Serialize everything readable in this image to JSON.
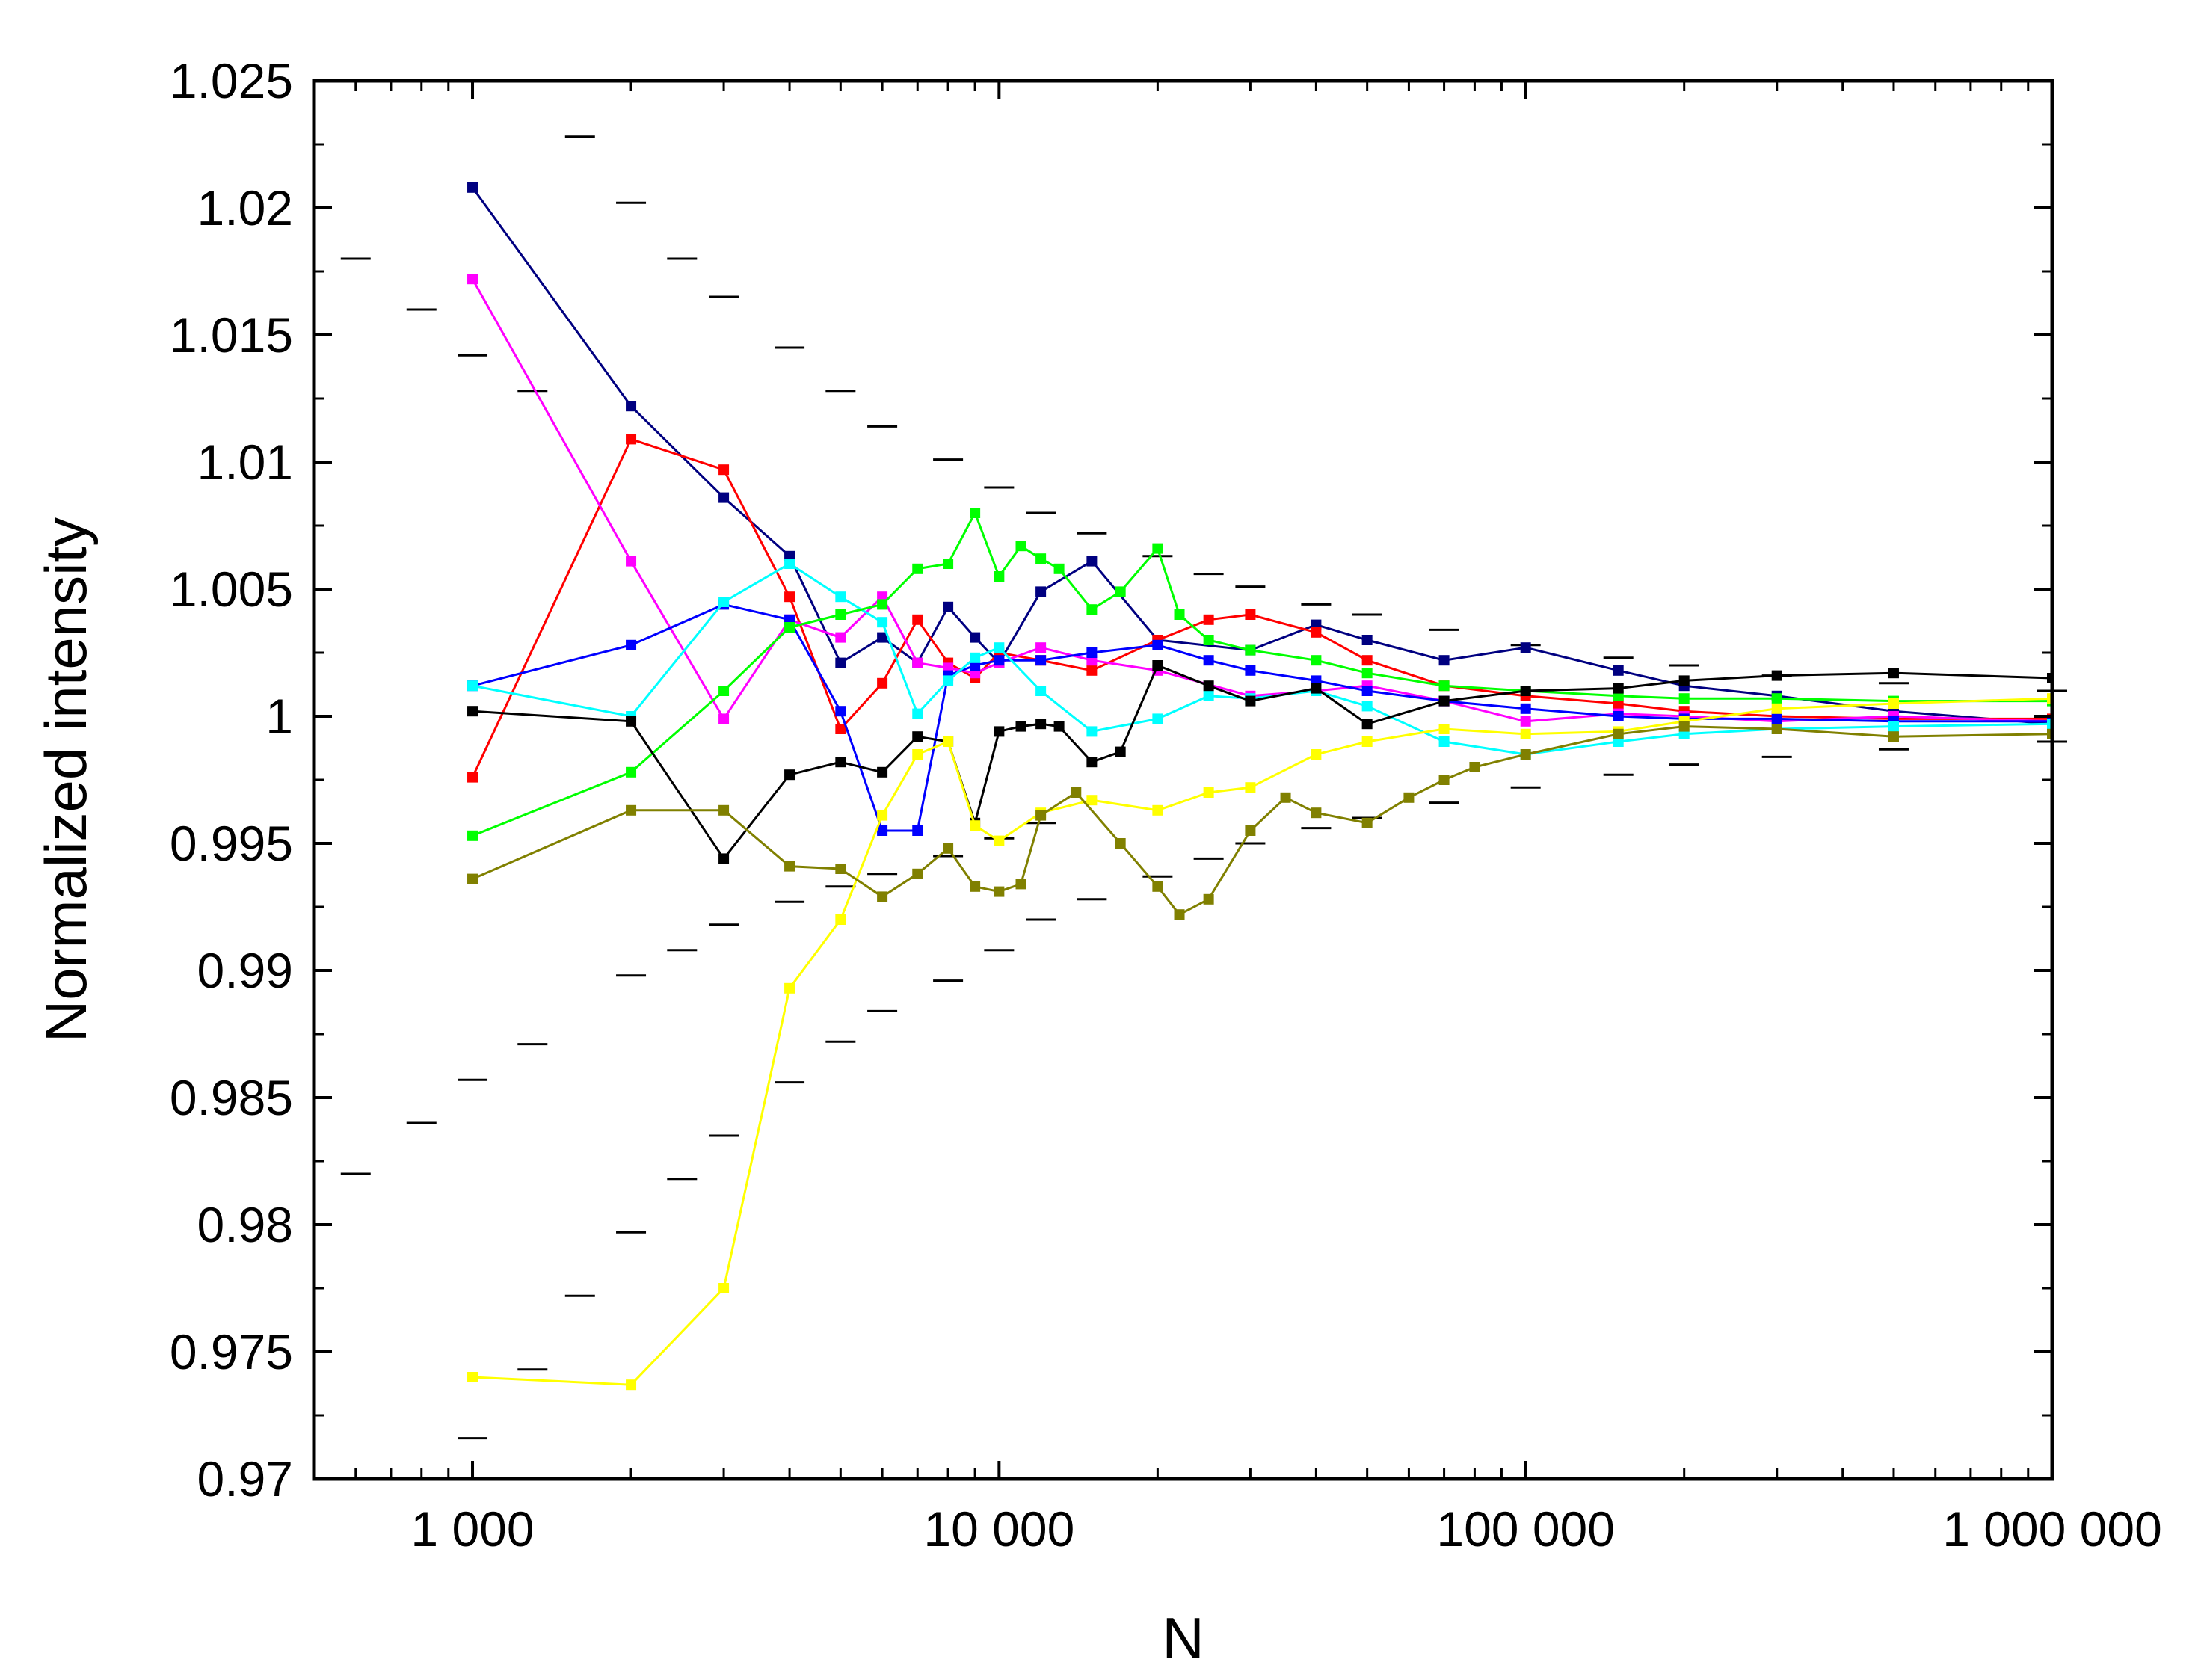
{
  "chart_data": {
    "type": "line",
    "title": "",
    "xlabel": "N",
    "ylabel": "Normalized intensity",
    "xscale": "log",
    "xlim": [
      500,
      1000000
    ],
    "ylim": [
      0.97,
      1.025
    ],
    "grid": false,
    "legend": "none",
    "x_ticks": [
      {
        "value": 1000,
        "label": "1 000"
      },
      {
        "value": 10000,
        "label": "10 000"
      },
      {
        "value": 100000,
        "label": "100 000"
      },
      {
        "value": 1000000,
        "label": "1 000 000"
      }
    ],
    "y_ticks": [
      {
        "value": 0.97,
        "label": "0.97"
      },
      {
        "value": 0.975,
        "label": "0.975"
      },
      {
        "value": 0.98,
        "label": "0.98"
      },
      {
        "value": 0.985,
        "label": "0.985"
      },
      {
        "value": 0.99,
        "label": "0.99"
      },
      {
        "value": 0.995,
        "label": "0.995"
      },
      {
        "value": 1.0,
        "label": "1"
      },
      {
        "value": 1.005,
        "label": "1.005"
      },
      {
        "value": 1.01,
        "label": "1.01"
      },
      {
        "value": 1.015,
        "label": "1.015"
      },
      {
        "value": 1.02,
        "label": "1.02"
      },
      {
        "value": 1.025,
        "label": "1.025"
      }
    ],
    "series": [
      {
        "name": "navy",
        "color": "#000080",
        "x": [
          1000,
          2000,
          3000,
          4000,
          5000,
          6000,
          7000,
          8000,
          9000,
          10000,
          12000,
          15000,
          20000,
          30000,
          40000,
          50000,
          70000,
          100000,
          150000,
          200000,
          300000,
          500000,
          1000000
        ],
        "y": [
          1.0208,
          1.0122,
          1.0086,
          1.0063,
          1.0021,
          1.0031,
          1.0021,
          1.0043,
          1.0031,
          1.0021,
          1.0049,
          1.0061,
          1.003,
          1.0026,
          1.0036,
          1.003,
          1.0022,
          1.0027,
          1.0018,
          1.0012,
          1.0008,
          1.0002,
          0.9997
        ]
      },
      {
        "name": "red",
        "color": "#ff0000",
        "x": [
          1000,
          2000,
          3000,
          4000,
          5000,
          6000,
          7000,
          8000,
          9000,
          10000,
          12000,
          15000,
          20000,
          25000,
          30000,
          40000,
          50000,
          70000,
          100000,
          150000,
          200000,
          300000,
          500000,
          1000000
        ],
        "y": [
          0.9976,
          1.0109,
          1.0097,
          1.0047,
          0.9995,
          1.0013,
          1.0038,
          1.0021,
          1.0015,
          1.0025,
          1.0022,
          1.0018,
          1.003,
          1.0038,
          1.004,
          1.0033,
          1.0022,
          1.0012,
          1.0008,
          1.0005,
          1.0002,
          1.0,
          0.9999,
          0.9999
        ]
      },
      {
        "name": "magenta",
        "color": "#ff00ff",
        "x": [
          1000,
          2000,
          3000,
          4000,
          5000,
          6000,
          7000,
          8000,
          9000,
          10000,
          12000,
          15000,
          20000,
          30000,
          40000,
          50000,
          70000,
          100000,
          150000,
          200000,
          300000,
          500000,
          1000000
        ],
        "y": [
          1.0172,
          1.0061,
          0.9999,
          1.0038,
          1.0031,
          1.0047,
          1.0021,
          1.0019,
          1.0017,
          1.0021,
          1.0027,
          1.0022,
          1.0018,
          1.0008,
          1.001,
          1.0012,
          1.0006,
          0.9998,
          1.0001,
          1.0,
          0.9998,
          1.0,
          0.9998
        ]
      },
      {
        "name": "blue",
        "color": "#0000ff",
        "x": [
          1000,
          2000,
          3000,
          4000,
          5000,
          6000,
          7000,
          8000,
          9000,
          10000,
          12000,
          15000,
          20000,
          25000,
          30000,
          40000,
          50000,
          70000,
          100000,
          150000,
          200000,
          300000,
          500000,
          1000000
        ],
        "y": [
          1.0012,
          1.0028,
          1.0044,
          1.0038,
          1.0002,
          0.9955,
          0.9955,
          1.0016,
          1.002,
          1.0022,
          1.0022,
          1.0025,
          1.0028,
          1.0022,
          1.0018,
          1.0014,
          1.001,
          1.0006,
          1.0003,
          1.0,
          0.9999,
          0.9999,
          0.9998,
          0.9998
        ]
      },
      {
        "name": "cyan",
        "color": "#00ffff",
        "x": [
          1000,
          2000,
          3000,
          4000,
          5000,
          6000,
          7000,
          8000,
          9000,
          10000,
          12000,
          15000,
          20000,
          25000,
          30000,
          40000,
          50000,
          70000,
          100000,
          150000,
          200000,
          300000,
          500000,
          1000000
        ],
        "y": [
          1.0012,
          1.0,
          1.0045,
          1.006,
          1.0047,
          1.0037,
          1.0001,
          1.0014,
          1.0023,
          1.0027,
          1.001,
          0.9994,
          0.9999,
          1.0008,
          1.0007,
          1.001,
          1.0004,
          0.999,
          0.9985,
          0.999,
          0.9993,
          0.9995,
          0.9996,
          0.9997
        ]
      },
      {
        "name": "green",
        "color": "#00ff00",
        "x": [
          1000,
          2000,
          3000,
          4000,
          5000,
          6000,
          7000,
          8000,
          9000,
          10000,
          11000,
          12000,
          13000,
          15000,
          17000,
          20000,
          22000,
          25000,
          30000,
          40000,
          50000,
          70000,
          100000,
          150000,
          200000,
          300000,
          500000,
          1000000
        ],
        "y": [
          0.9953,
          0.9978,
          1.001,
          1.0035,
          1.004,
          1.0044,
          1.0058,
          1.006,
          1.008,
          1.0055,
          1.0067,
          1.0062,
          1.0058,
          1.0042,
          1.0049,
          1.0066,
          1.004,
          1.003,
          1.0026,
          1.0022,
          1.0017,
          1.0012,
          1.001,
          1.0008,
          1.0007,
          1.0007,
          1.0006,
          1.0006
        ]
      },
      {
        "name": "black",
        "color": "#000000",
        "x": [
          1000,
          2000,
          3000,
          4000,
          5000,
          6000,
          7000,
          8000,
          9000,
          10000,
          11000,
          12000,
          13000,
          15000,
          17000,
          20000,
          25000,
          30000,
          40000,
          50000,
          70000,
          100000,
          150000,
          200000,
          300000,
          500000,
          1000000
        ],
        "y": [
          1.0002,
          0.9998,
          0.9944,
          0.9977,
          0.9982,
          0.9978,
          0.9992,
          0.999,
          0.9958,
          0.9994,
          0.9996,
          0.9997,
          0.9996,
          0.9982,
          0.9986,
          1.002,
          1.0012,
          1.0006,
          1.0011,
          0.9997,
          1.0006,
          1.001,
          1.0011,
          1.0014,
          1.0016,
          1.0017,
          1.0015
        ]
      },
      {
        "name": "yellow",
        "color": "#ffff00",
        "x": [
          1000,
          2000,
          3000,
          4000,
          5000,
          6000,
          7000,
          8000,
          9000,
          10000,
          12000,
          15000,
          20000,
          25000,
          30000,
          40000,
          50000,
          70000,
          100000,
          150000,
          200000,
          300000,
          500000,
          1000000
        ],
        "y": [
          0.974,
          0.9737,
          0.9775,
          0.9893,
          0.992,
          0.9961,
          0.9985,
          0.999,
          0.9957,
          0.9951,
          0.9962,
          0.9967,
          0.9963,
          0.997,
          0.9972,
          0.9985,
          0.999,
          0.9995,
          0.9993,
          0.9994,
          0.9998,
          1.0003,
          1.0005,
          1.0007
        ]
      },
      {
        "name": "olive",
        "color": "#808000",
        "x": [
          1000,
          2000,
          3000,
          4000,
          5000,
          6000,
          7000,
          8000,
          9000,
          10000,
          11000,
          12000,
          14000,
          17000,
          20000,
          22000,
          25000,
          30000,
          35000,
          40000,
          50000,
          60000,
          70000,
          80000,
          100000,
          150000,
          200000,
          300000,
          500000,
          1000000
        ],
        "y": [
          0.9936,
          0.9963,
          0.9963,
          0.9941,
          0.994,
          0.9929,
          0.9938,
          0.9948,
          0.9933,
          0.9931,
          0.9934,
          0.9961,
          0.997,
          0.995,
          0.9933,
          0.9922,
          0.9928,
          0.9955,
          0.9968,
          0.9962,
          0.9958,
          0.9968,
          0.9975,
          0.998,
          0.9985,
          0.9993,
          0.9996,
          0.9995,
          0.9992,
          0.9993
        ]
      }
    ],
    "envelope_markers": {
      "note": "short horizontal dash markers bounding the series",
      "upper": {
        "x": [
          600,
          800,
          1000,
          1300,
          1600,
          2000,
          2500,
          3000,
          4000,
          5000,
          6000,
          8000,
          10000,
          12000,
          15000,
          20000,
          25000,
          30000,
          40000,
          50000,
          70000,
          100000,
          150000,
          200000,
          300000,
          500000,
          1000000
        ],
        "y": [
          1.018,
          1.016,
          1.0142,
          1.0128,
          1.0228,
          1.0202,
          1.018,
          1.0165,
          1.0145,
          1.0128,
          1.0114,
          1.0101,
          1.009,
          1.008,
          1.0072,
          1.0063,
          1.0056,
          1.0051,
          1.0044,
          1.004,
          1.0034,
          1.0028,
          1.0023,
          1.002,
          1.0016,
          1.0013,
          1.001
        ]
      },
      "lower": {
        "x": [
          600,
          800,
          1000,
          1300,
          1600,
          2000,
          2500,
          3000,
          4000,
          5000,
          6000,
          8000,
          10000,
          12000,
          15000,
          20000,
          25000,
          30000,
          40000,
          50000,
          70000,
          100000,
          150000,
          200000,
          300000,
          500000,
          1000000
        ],
        "y": [
          0.982,
          0.984,
          0.9857,
          0.9743,
          0.9772,
          0.9797,
          0.9818,
          0.9835,
          0.9856,
          0.9872,
          0.9884,
          0.9896,
          0.9908,
          0.992,
          0.9928,
          0.9937,
          0.9944,
          0.995,
          0.9956,
          0.996,
          0.9966,
          0.9972,
          0.9977,
          0.9981,
          0.9984,
          0.9987,
          0.999
        ]
      },
      "extra": {
        "x": [
          1000,
          1300,
          2000,
          2500,
          3000,
          4000,
          5000,
          6000,
          8000,
          10000,
          12000
        ],
        "y": [
          0.9716,
          0.9871,
          0.9898,
          0.9908,
          0.9918,
          0.9927,
          0.9933,
          0.9938,
          0.9945,
          0.9952,
          0.9958
        ]
      }
    }
  }
}
